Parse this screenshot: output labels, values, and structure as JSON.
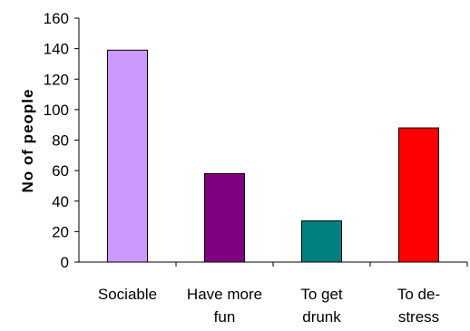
{
  "chart_data": {
    "type": "bar",
    "title": "",
    "xlabel": "",
    "ylabel": "No of people",
    "ylim": [
      0,
      160
    ],
    "yticks": [
      0,
      20,
      40,
      60,
      80,
      100,
      120,
      140,
      160
    ],
    "grid": false,
    "legend": "none",
    "categories": [
      [
        "Sociable"
      ],
      [
        "Have more",
        "fun"
      ],
      [
        "To get",
        "drunk"
      ],
      [
        "To de-",
        "stress"
      ]
    ],
    "values": [
      139,
      58,
      27,
      88
    ],
    "colors": [
      "#cc99ff",
      "#800080",
      "#008080",
      "#ff0000"
    ]
  }
}
